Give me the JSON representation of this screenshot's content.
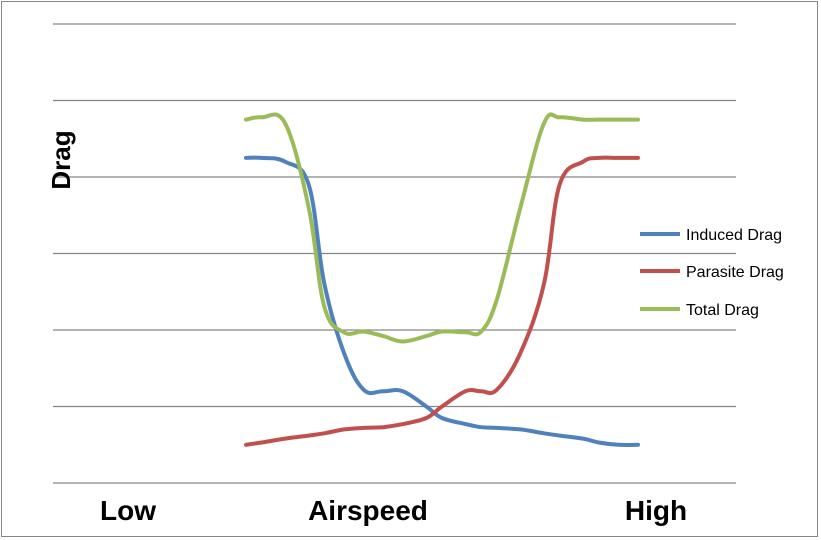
{
  "chart_data": {
    "type": "line",
    "ylabel": "Drag",
    "xlabel": "Airspeed",
    "x_tick_labels": [
      "Low",
      "High"
    ],
    "ylim": [
      0,
      6
    ],
    "grid": true,
    "legend_position": "right",
    "x": [
      0,
      0.4,
      1,
      1.6,
      2,
      2.5,
      3,
      3.5,
      4,
      4.6,
      5,
      5.6,
      6,
      6.4,
      7,
      7.6,
      8,
      8.6,
      9,
      9.5,
      10
    ],
    "series": [
      {
        "name": "Induced Drag",
        "color": "#4F81BD",
        "values": [
          4.25,
          4.25,
          4.2,
          3.9,
          2.6,
          1.7,
          1.22,
          1.2,
          1.2,
          1.0,
          0.85,
          0.77,
          0.73,
          0.72,
          0.7,
          0.65,
          0.62,
          0.58,
          0.53,
          0.5,
          0.5
        ]
      },
      {
        "name": "Parasite Drag",
        "color": "#C0504D",
        "values": [
          0.5,
          0.53,
          0.58,
          0.62,
          0.65,
          0.7,
          0.72,
          0.73,
          0.77,
          0.85,
          1.0,
          1.2,
          1.2,
          1.22,
          1.7,
          2.6,
          3.9,
          4.2,
          4.25,
          4.25,
          4.25
        ]
      },
      {
        "name": "Total Drag",
        "color": "#9BBB59",
        "values": [
          4.75,
          4.78,
          4.7,
          3.6,
          2.3,
          1.97,
          1.98,
          1.92,
          1.85,
          1.92,
          1.98,
          1.97,
          1.98,
          2.4,
          3.6,
          4.7,
          4.78,
          4.75,
          4.75,
          4.75,
          4.75
        ]
      }
    ]
  }
}
